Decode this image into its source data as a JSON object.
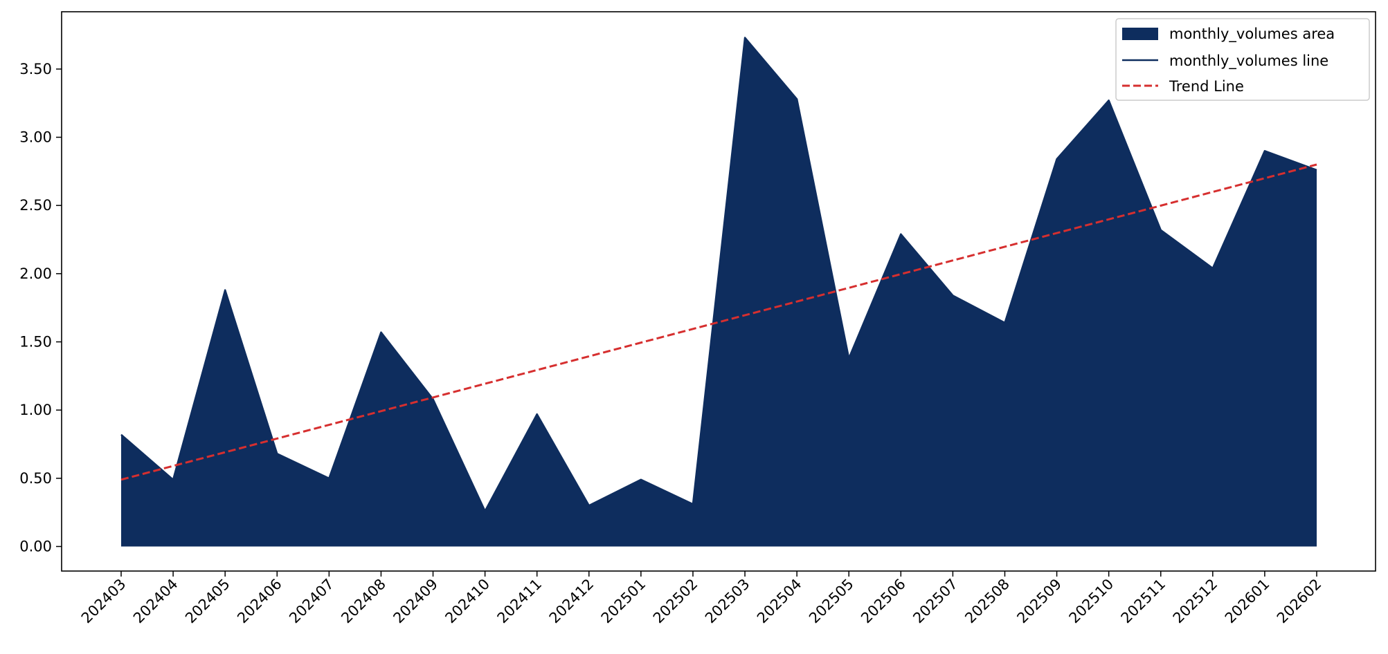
{
  "chart_data": {
    "type": "area",
    "title": "",
    "xlabel": "",
    "ylabel": "",
    "categories": [
      "202403",
      "202404",
      "202405",
      "202406",
      "202407",
      "202408",
      "202409",
      "202410",
      "202411",
      "202412",
      "202501",
      "202502",
      "202503",
      "202504",
      "202505",
      "202506",
      "202507",
      "202508",
      "202509",
      "202510",
      "202511",
      "202512",
      "202601",
      "202602"
    ],
    "series": [
      {
        "name": "monthly_volumes",
        "values": [
          0.82,
          0.49,
          1.88,
          0.68,
          0.5,
          1.57,
          1.08,
          0.26,
          0.97,
          0.3,
          0.49,
          0.31,
          3.73,
          3.28,
          1.38,
          2.29,
          1.84,
          1.64,
          2.84,
          3.27,
          2.32,
          2.04,
          2.9,
          2.76
        ]
      }
    ],
    "trend_line": {
      "start": 0.49,
      "end": 2.8
    },
    "ylim": [
      -0.18,
      3.92
    ],
    "yticks": [
      0.0,
      0.5,
      1.0,
      1.5,
      2.0,
      2.5,
      3.0,
      3.5
    ],
    "ytick_labels": [
      "0.00",
      "0.50",
      "1.00",
      "1.50",
      "2.00",
      "2.50",
      "3.00",
      "3.50"
    ],
    "grid": false,
    "legend": {
      "placement": "top-right",
      "entries": [
        "monthly_volumes area",
        "monthly_volumes line",
        "Trend Line"
      ]
    },
    "colors": {
      "area": "#0e2d5e",
      "line": "#0e2d5e",
      "trend": "#d62f2f"
    }
  }
}
